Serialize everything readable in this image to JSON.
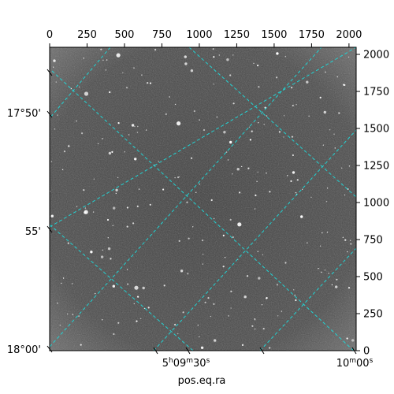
{
  "chart_data": {
    "type": "image",
    "image_description_colors": {
      "background_sky": "#5a5a5a",
      "background_center": "#3f3f3f",
      "stars": "#ffffff",
      "grid": "#22d3d3",
      "axes": "#000000"
    },
    "pixel_axes": {
      "x_ticks": [
        0,
        250,
        500,
        750,
        1000,
        1250,
        1500,
        1750,
        2000
      ],
      "x_tick_labels": [
        "0",
        "250",
        "500",
        "750",
        "1000",
        "1250",
        "1500",
        "1750",
        "2000"
      ],
      "x_range": [
        0,
        2048
      ],
      "y_ticks": [
        0,
        250,
        500,
        750,
        1000,
        1250,
        1500,
        1750,
        2000
      ],
      "y_tick_labels": [
        "0",
        "250",
        "500",
        "750",
        "1000",
        "1250",
        "1500",
        "1750",
        "2000"
      ],
      "y_range": [
        0,
        2048
      ]
    },
    "world_axes": {
      "xlabel": "pos.eq.ra",
      "ra_tick_labels": [
        {
          "main": "5",
          "sup1": "h",
          "mid": "09",
          "sup2": "m",
          "end": "30",
          "sup3": "s"
        },
        {
          "main": "10",
          "sup1": "m",
          "mid": "00",
          "sup2": "s",
          "end": "",
          "sup3": ""
        }
      ],
      "dec_tick_labels": [
        "17°50'",
        "55'",
        "18°00'"
      ]
    },
    "grid": true
  }
}
